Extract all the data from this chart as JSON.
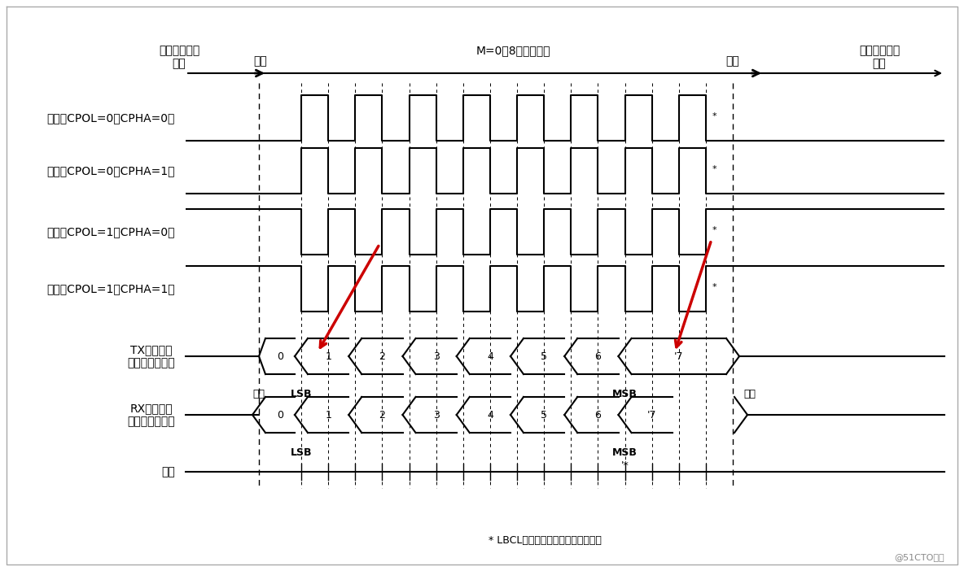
{
  "bg_color": "#ffffff",
  "line_color": "#000000",
  "red_color": "#cc0000",
  "fig_width": 11.84,
  "fig_height": 7.02,
  "dpi": 100,
  "top_labels": {
    "idle_left": "空闲或上一次\n发送",
    "start": "启动",
    "m0": "M=0（8个数据位）",
    "stop": "停止",
    "idle_right": "空闲或下一次\n发送"
  },
  "row_labels": [
    "时钟（CPOL=0、CPHA=0）",
    "时钟（CPOL=0、CPHA=1）",
    "时钟（CPOL=1、CPHA=0）",
    "时钟（CPOL=1、CPHA=1）",
    "TX上的数据\n（来自主器件）",
    "RX上的数据\n（来自从器件）",
    "采样"
  ],
  "tx_labels": [
    "0",
    "1",
    "2",
    "3",
    "4",
    "5",
    "6",
    "'7"
  ],
  "rx_labels": [
    "0",
    "1",
    "2",
    "3",
    "4",
    "5",
    "6",
    "'7"
  ],
  "bottom_note": "* LBCL位控制最后一个数据时钟脉冲",
  "watermark": "@51CTO博客",
  "label_start": "启动",
  "label_lsb": "LSB",
  "label_msb": "MSB",
  "label_stop": "停止",
  "label_sampling": "采样",
  "star": "*",
  "star_lbcl": "'*"
}
